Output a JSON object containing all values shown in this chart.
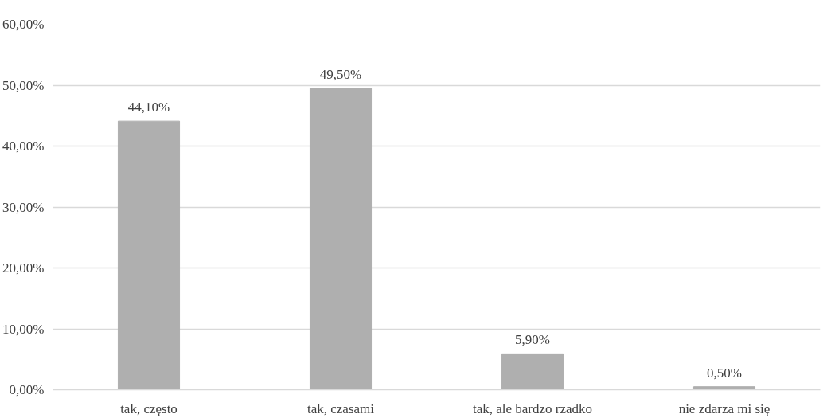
{
  "chart_data": {
    "type": "bar",
    "categories": [
      "tak, często",
      "tak, czasami",
      "tak, ale bardzo rzadko",
      "nie zdarza mi się"
    ],
    "values": [
      44.1,
      49.5,
      5.9,
      0.5
    ],
    "value_labels": [
      "44,10%",
      "49,50%",
      "5,90%",
      "0,50%"
    ],
    "color": "#afafaf",
    "ylim": [
      0,
      60
    ],
    "yticks": [
      {
        "value": 0,
        "label": "0,00%"
      },
      {
        "value": 10,
        "label": "10,00%"
      },
      {
        "value": 20,
        "label": "20,00%"
      },
      {
        "value": 30,
        "label": "30,00%"
      },
      {
        "value": 40,
        "label": "40,00%"
      },
      {
        "value": 50,
        "label": "50,00%"
      },
      {
        "value": 60,
        "label": "60,00%"
      }
    ],
    "grid": "y"
  }
}
